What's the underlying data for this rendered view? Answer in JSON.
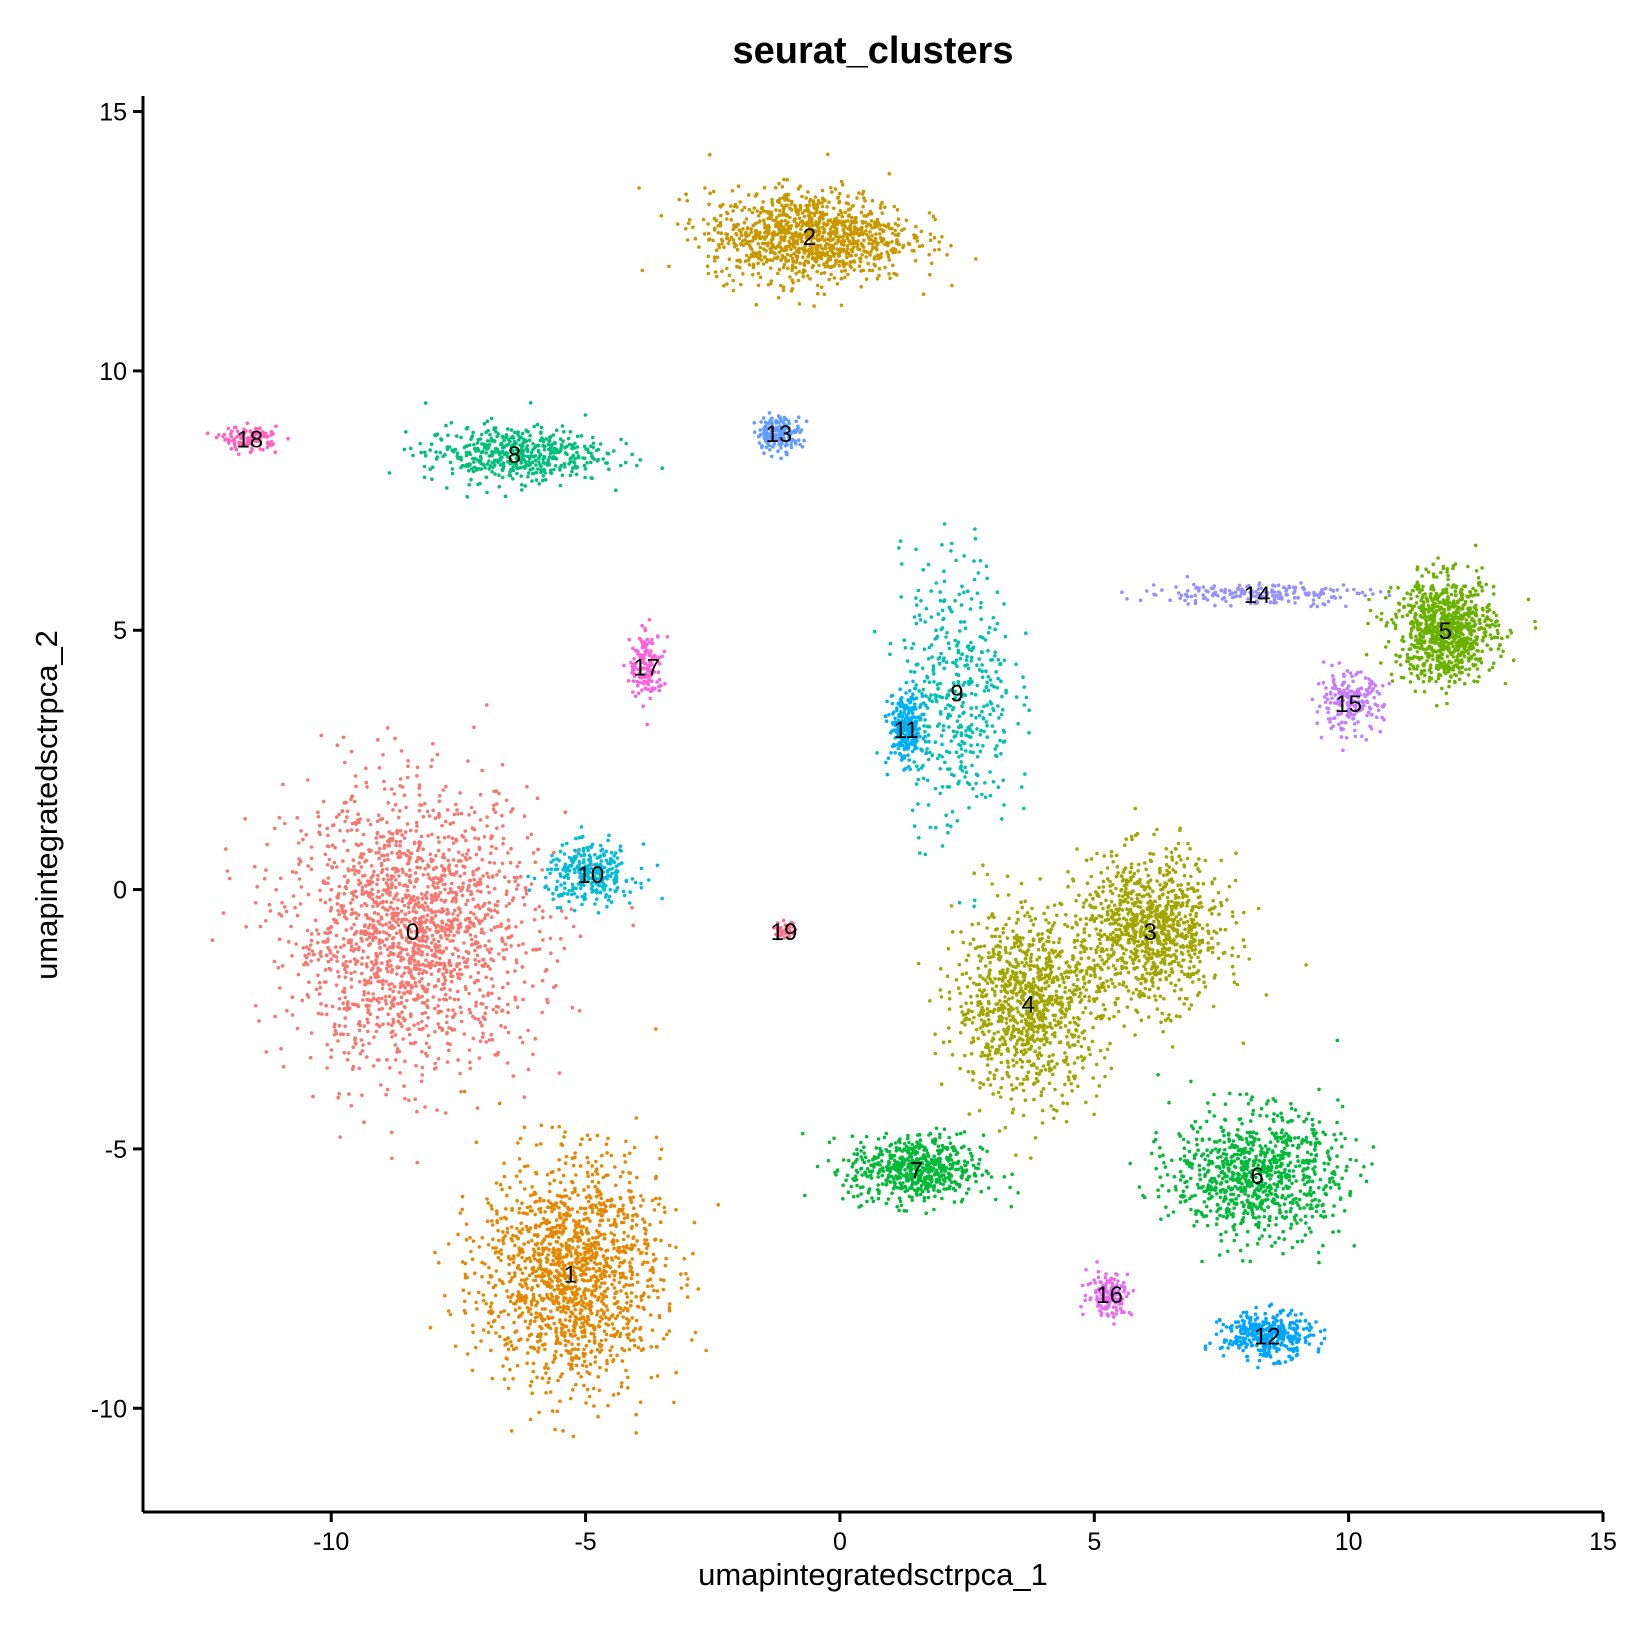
{
  "chart_data": {
    "type": "scatter",
    "title": "seurat_clusters",
    "xlabel": "umapintegratedsctrpca_1",
    "ylabel": "umapintegratedsctrpca_2",
    "xlim": [
      -13.7,
      15.0
    ],
    "ylim": [
      -12.0,
      15.3
    ],
    "xticks": [
      -10,
      -5,
      0,
      5,
      10,
      15
    ],
    "xtick_labels": [
      "-10",
      "-5",
      "0",
      "5",
      "10",
      "15"
    ],
    "yticks": [
      -10,
      -5,
      0,
      5,
      10,
      15
    ],
    "ytick_labels": [
      "-10",
      "-5",
      "0",
      "5",
      "10",
      "15"
    ],
    "grid": false,
    "legend": "none",
    "clusters": [
      {
        "label": "0",
        "color": "#F8766D",
        "center": [
          -8.4,
          -0.8
        ],
        "spread": [
          2.2,
          2.4
        ],
        "weight": 1800
      },
      {
        "label": "1",
        "color": "#E58700",
        "center": [
          -5.3,
          -7.4
        ],
        "spread": [
          1.6,
          2.0
        ],
        "weight": 1500
      },
      {
        "label": "2",
        "color": "#C99800",
        "center": [
          -0.6,
          12.6
        ],
        "spread": [
          1.8,
          0.8
        ],
        "weight": 1100
      },
      {
        "label": "3",
        "color": "#A3A500",
        "center": [
          6.1,
          -0.8
        ],
        "spread": [
          1.3,
          1.3
        ],
        "weight": 1000
      },
      {
        "label": "4",
        "color": "#A3A500",
        "center": [
          3.7,
          -2.2
        ],
        "spread": [
          1.3,
          1.6
        ],
        "weight": 1000
      },
      {
        "label": "5",
        "color": "#6BB100",
        "center": [
          11.9,
          5.0
        ],
        "spread": [
          0.9,
          0.9
        ],
        "weight": 900
      },
      {
        "label": "6",
        "color": "#00BA38",
        "center": [
          8.2,
          -5.5
        ],
        "spread": [
          1.5,
          1.1
        ],
        "weight": 900
      },
      {
        "label": "7",
        "color": "#00BA38",
        "center": [
          1.5,
          -5.4
        ],
        "spread": [
          1.2,
          0.6
        ],
        "weight": 600
      },
      {
        "label": "8",
        "color": "#00BF7D",
        "center": [
          -6.4,
          8.4
        ],
        "spread": [
          1.6,
          0.5
        ],
        "weight": 500
      },
      {
        "label": "9",
        "color": "#00C0AF",
        "center": [
          2.3,
          3.8
        ],
        "spread": [
          1.0,
          2.4
        ],
        "weight": 450
      },
      {
        "label": "10",
        "color": "#00BCD8",
        "center": [
          -4.9,
          0.3
        ],
        "spread": [
          0.8,
          0.5
        ],
        "weight": 300
      },
      {
        "label": "11",
        "color": "#00B0F6",
        "center": [
          1.3,
          3.1
        ],
        "spread": [
          0.3,
          0.6
        ],
        "weight": 260
      },
      {
        "label": "12",
        "color": "#00A5FF",
        "center": [
          8.4,
          -8.6
        ],
        "spread": [
          0.8,
          0.4
        ],
        "weight": 360
      },
      {
        "label": "13",
        "color": "#619CFF",
        "center": [
          -1.2,
          8.8
        ],
        "spread": [
          0.4,
          0.3
        ],
        "weight": 180
      },
      {
        "label": "14",
        "color": "#9590FF",
        "center": [
          8.2,
          5.7
        ],
        "spread": [
          2.0,
          0.2
        ],
        "weight": 180
      },
      {
        "label": "15",
        "color": "#C77CFF",
        "center": [
          10.0,
          3.6
        ],
        "spread": [
          0.6,
          0.5
        ],
        "weight": 200
      },
      {
        "label": "16",
        "color": "#E76BF3",
        "center": [
          5.3,
          -7.8
        ],
        "spread": [
          0.4,
          0.4
        ],
        "weight": 150
      },
      {
        "label": "17",
        "color": "#FA62DB",
        "center": [
          -3.8,
          4.3
        ],
        "spread": [
          0.3,
          0.6
        ],
        "weight": 150
      },
      {
        "label": "18",
        "color": "#FF62BC",
        "center": [
          -11.6,
          8.7
        ],
        "spread": [
          0.5,
          0.2
        ],
        "weight": 110
      },
      {
        "label": "19",
        "color": "#FF6C91",
        "center": [
          -1.1,
          -0.8
        ],
        "spread": [
          0.2,
          0.15
        ],
        "weight": 40
      }
    ]
  }
}
